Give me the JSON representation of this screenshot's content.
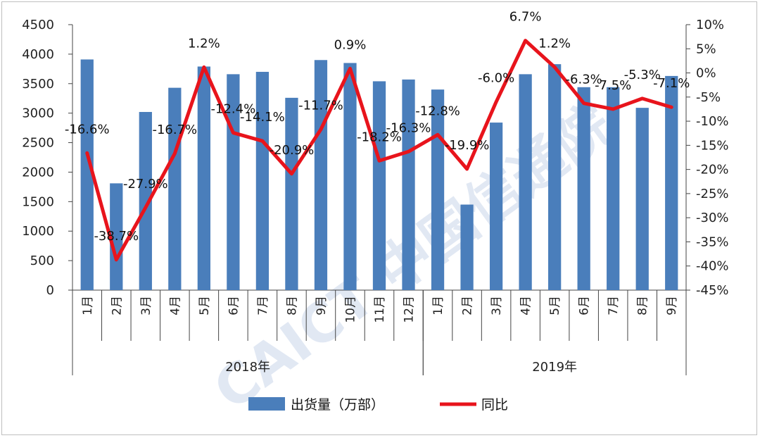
{
  "chart_data": {
    "type": "bar+line",
    "categories": [
      "1月",
      "2月",
      "3月",
      "4月",
      "5月",
      "6月",
      "7月",
      "8月",
      "9月",
      "10月",
      "11月",
      "12月",
      "1月",
      "2月",
      "3月",
      "4月",
      "5月",
      "6月",
      "7月",
      "8月",
      "9月"
    ],
    "groups": [
      {
        "label": "2018年",
        "start": 0,
        "end": 11
      },
      {
        "label": "2019年",
        "start": 12,
        "end": 20
      }
    ],
    "series": [
      {
        "name": "出货量（万部）",
        "kind": "bar",
        "axis": "left",
        "color": "#4a7ebb",
        "values": [
          3910,
          1810,
          3020,
          3430,
          3790,
          3660,
          3700,
          3260,
          3900,
          3850,
          3540,
          3570,
          3400,
          1450,
          2840,
          3660,
          3830,
          3440,
          3440,
          3090,
          3630
        ]
      },
      {
        "name": "同比",
        "kind": "line",
        "axis": "right",
        "color": "#e8141c",
        "values": [
          -16.6,
          -38.7,
          -27.9,
          -16.7,
          1.2,
          -12.4,
          -14.1,
          -20.9,
          -11.7,
          0.9,
          -18.2,
          -16.3,
          -12.8,
          -19.9,
          -6.0,
          6.7,
          1.2,
          -6.3,
          -7.5,
          -5.3,
          -7.1
        ],
        "labels": [
          "-16.6%",
          "-38.7%",
          "-27.9%",
          "-16.7%",
          "1.2%",
          "-12.4%",
          "-14.1%",
          "-20.9%",
          "-11.7%",
          "0.9%",
          "-18.2%",
          "-16.3%",
          "-12.8%",
          "-19.9%",
          "-6.0%",
          "6.7%",
          "1.2%",
          "-6.3%",
          "-7.5%",
          "-5.3%",
          "-7.1%"
        ]
      }
    ],
    "left_axis": {
      "min": 0,
      "max": 4500,
      "step": 500,
      "ticks": [
        "0",
        "500",
        "1000",
        "1500",
        "2000",
        "2500",
        "3000",
        "3500",
        "4000",
        "4500"
      ]
    },
    "right_axis": {
      "min": -45,
      "max": 10,
      "step": 5,
      "ticks": [
        "-45%",
        "-40%",
        "-35%",
        "-30%",
        "-25%",
        "-20%",
        "-15%",
        "-10%",
        "-5%",
        "0%",
        "5%",
        "10%"
      ]
    },
    "grid": false,
    "legend_position": "bottom-center",
    "title": "",
    "xlabel": "",
    "ylabel": ""
  },
  "watermark": {
    "text": "CAICT 中国信通院",
    "color": "#c9d6ea"
  }
}
